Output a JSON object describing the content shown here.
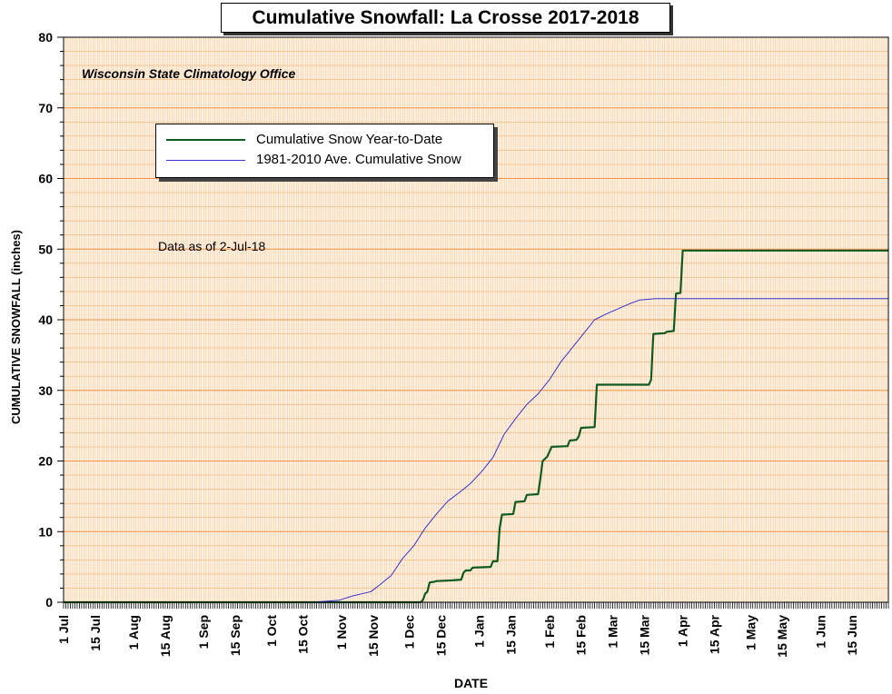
{
  "chart_data": {
    "type": "line",
    "title": "Cumulative Snowfall: La Crosse 2017-2018",
    "source_note": "Wisconsin State Climatology Office",
    "data_note": "Data as of 2-Jul-18",
    "xlabel": "DATE",
    "ylabel": "CUMULATIVE SNOWFALL (inches)",
    "ylim": [
      0,
      80
    ],
    "yticks": [
      0,
      10,
      20,
      30,
      40,
      50,
      60,
      70,
      80
    ],
    "x_range_days": [
      0,
      365
    ],
    "xticks": [
      {
        "label": "1 Jul",
        "day": 0
      },
      {
        "label": "15 Jul",
        "day": 14
      },
      {
        "label": "1 Aug",
        "day": 31
      },
      {
        "label": "15 Aug",
        "day": 45
      },
      {
        "label": "1 Sep",
        "day": 62
      },
      {
        "label": "15 Sep",
        "day": 76
      },
      {
        "label": "1 Oct",
        "day": 92
      },
      {
        "label": "15 Oct",
        "day": 106
      },
      {
        "label": "1 Nov",
        "day": 123
      },
      {
        "label": "15 Nov",
        "day": 137
      },
      {
        "label": "1 Dec",
        "day": 153
      },
      {
        "label": "15 Dec",
        "day": 167
      },
      {
        "label": "1 Jan",
        "day": 184
      },
      {
        "label": "15 Jan",
        "day": 198
      },
      {
        "label": "1 Feb",
        "day": 215
      },
      {
        "label": "15 Feb",
        "day": 229
      },
      {
        "label": "1 Mar",
        "day": 243
      },
      {
        "label": "15 Mar",
        "day": 257
      },
      {
        "label": "1 Apr",
        "day": 274
      },
      {
        "label": "15 Apr",
        "day": 288
      },
      {
        "label": "1 May",
        "day": 304
      },
      {
        "label": "15 May",
        "day": 318
      },
      {
        "label": "1 Jun",
        "day": 335
      },
      {
        "label": "15 Jun",
        "day": 349
      }
    ],
    "grid": true,
    "legend_position": "top-left",
    "series": [
      {
        "name": "Cumulative Snow Year-to-Date",
        "color": "#0f5a1e",
        "points": [
          [
            0,
            0
          ],
          [
            158,
            0
          ],
          [
            159,
            0.3
          ],
          [
            160,
            1.2
          ],
          [
            161,
            1.5
          ],
          [
            162,
            2.8
          ],
          [
            164,
            2.9
          ],
          [
            165,
            3.0
          ],
          [
            172,
            3.1
          ],
          [
            176,
            3.2
          ],
          [
            177,
            4.2
          ],
          [
            178,
            4.5
          ],
          [
            180,
            4.5
          ],
          [
            181,
            4.9
          ],
          [
            189,
            5.0
          ],
          [
            190,
            5.8
          ],
          [
            192,
            5.8
          ],
          [
            193,
            10.5
          ],
          [
            194,
            12.4
          ],
          [
            199,
            12.5
          ],
          [
            200,
            14.2
          ],
          [
            204,
            14.3
          ],
          [
            205,
            15.2
          ],
          [
            210,
            15.3
          ],
          [
            211,
            17.5
          ],
          [
            212,
            20.0
          ],
          [
            214,
            20.6
          ],
          [
            216,
            22.0
          ],
          [
            223,
            22.1
          ],
          [
            224,
            22.9
          ],
          [
            227,
            23.0
          ],
          [
            228,
            23.5
          ],
          [
            229,
            24.7
          ],
          [
            235,
            24.8
          ],
          [
            236,
            30.8
          ],
          [
            259,
            30.8
          ],
          [
            260,
            31.5
          ],
          [
            261,
            38.0
          ],
          [
            266,
            38.1
          ],
          [
            267,
            38.3
          ],
          [
            270,
            38.4
          ],
          [
            271,
            43.7
          ],
          [
            273,
            43.8
          ],
          [
            274,
            49.8
          ],
          [
            365,
            49.8
          ]
        ]
      },
      {
        "name": "1981-2010 Ave. Cumulative Snow",
        "color": "#3333cc",
        "points": [
          [
            0,
            0
          ],
          [
            110,
            0
          ],
          [
            122,
            0.3
          ],
          [
            128,
            0.9
          ],
          [
            136,
            1.5
          ],
          [
            140,
            2.5
          ],
          [
            145,
            3.8
          ],
          [
            150,
            6.2
          ],
          [
            155,
            8.0
          ],
          [
            160,
            10.5
          ],
          [
            165,
            12.5
          ],
          [
            170,
            14.3
          ],
          [
            175,
            15.5
          ],
          [
            180,
            16.8
          ],
          [
            185,
            18.5
          ],
          [
            190,
            20.5
          ],
          [
            195,
            23.8
          ],
          [
            200,
            26.0
          ],
          [
            205,
            28.0
          ],
          [
            210,
            29.5
          ],
          [
            215,
            31.5
          ],
          [
            220,
            34.0
          ],
          [
            225,
            36.0
          ],
          [
            230,
            38.0
          ],
          [
            235,
            40.0
          ],
          [
            240,
            40.8
          ],
          [
            245,
            41.5
          ],
          [
            250,
            42.2
          ],
          [
            255,
            42.8
          ],
          [
            262,
            43.0
          ],
          [
            365,
            43.0
          ]
        ]
      }
    ]
  }
}
